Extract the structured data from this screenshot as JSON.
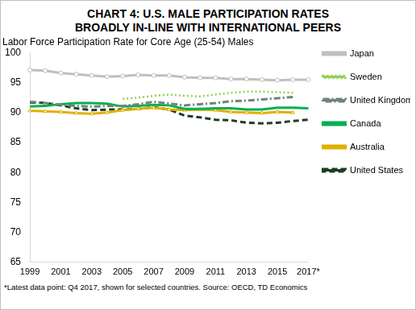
{
  "chart_data": {
    "type": "line",
    "title": "CHART 4: U.S. MALE PARTICIPATION RATES BROADLY IN-LINE WITH INTERNATIONAL PEERS",
    "subtitle": "Labor Force Participation Rate for Core Age (25-54) Males",
    "footnote": "*Latest data point: Q4 2017, shown for selected countries. Source: OECD, TD Economics",
    "categories": [
      "1999",
      null,
      "2001",
      null,
      "2003",
      null,
      "2005",
      null,
      "2007",
      null,
      "2009",
      null,
      "2011",
      null,
      "2013",
      null,
      "2015",
      null,
      "2017*"
    ],
    "series": [
      {
        "name": "Japan",
        "color": "#bfbfbf",
        "line_style": "solid",
        "marker": "circle",
        "values": [
          97.1,
          97.0,
          96.6,
          96.4,
          96.2,
          96.0,
          96.1,
          96.3,
          96.2,
          96.2,
          95.9,
          95.8,
          95.8,
          95.6,
          95.6,
          95.5,
          95.4,
          95.5,
          95.5
        ]
      },
      {
        "name": "Sweden",
        "color": "#92d050",
        "line_style": "dotted",
        "marker": "none",
        "values": [
          null,
          null,
          null,
          null,
          null,
          null,
          92.3,
          92.5,
          92.8,
          93.0,
          92.8,
          92.7,
          93.0,
          93.3,
          93.5,
          93.5,
          93.4,
          93.3,
          null
        ]
      },
      {
        "name": "United Kingdom",
        "color": "#6e8577",
        "line_style": "dashdot",
        "marker": "none",
        "values": [
          91.8,
          91.6,
          91.3,
          91.1,
          91.0,
          91.1,
          91.1,
          91.4,
          91.8,
          91.5,
          91.2,
          91.4,
          91.6,
          91.9,
          92.0,
          92.2,
          92.4,
          92.6,
          null
        ]
      },
      {
        "name": "Canada",
        "color": "#00b050",
        "line_style": "solid",
        "marker": "none",
        "values": [
          91.0,
          91.1,
          91.4,
          91.6,
          91.6,
          91.5,
          91.0,
          91.1,
          91.3,
          91.2,
          90.6,
          90.6,
          90.7,
          90.7,
          90.5,
          90.5,
          90.8,
          90.8,
          90.7
        ]
      },
      {
        "name": "Australia",
        "color": "#e0b000",
        "line_style": "solid",
        "marker": "triangle",
        "values": [
          90.3,
          90.2,
          90.1,
          89.9,
          89.8,
          90.0,
          90.4,
          90.6,
          90.8,
          90.5,
          90.4,
          90.5,
          90.4,
          90.1,
          90.0,
          89.9,
          90.1,
          90.0,
          null
        ]
      },
      {
        "name": "United States",
        "color": "#1e3d24",
        "line_style": "dashed",
        "marker": "none",
        "values": [
          91.7,
          91.6,
          91.2,
          90.7,
          90.4,
          90.5,
          90.5,
          90.6,
          90.9,
          90.5,
          89.5,
          89.2,
          88.8,
          88.7,
          88.3,
          88.2,
          88.3,
          88.6,
          88.8
        ]
      }
    ],
    "ylim": [
      65,
      100
    ],
    "yticks": [
      65,
      70,
      75,
      80,
      85,
      90,
      95,
      100
    ],
    "grid": false,
    "legend": "right"
  }
}
